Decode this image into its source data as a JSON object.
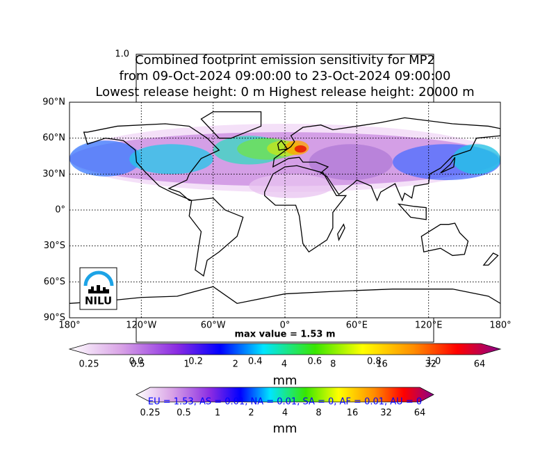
{
  "overlay_corner_tick": "1.0",
  "title": [
    "Combined footprint emission sensitivity for MP2",
    "from 09-Oct-2024 09:00:00 to 23-Oct-2024 09:00:00",
    "Lowest release height: 0 m       Highest release height: 20000 m"
  ],
  "map": {
    "lat_labels": [
      "90°N",
      "60°N",
      "30°N",
      "0°",
      "30°S",
      "60°S",
      "90°S"
    ],
    "lon_labels": [
      "180°",
      "120°W",
      "60°W",
      "0°",
      "60°E",
      "120°E",
      "180°"
    ],
    "logo": "NILU",
    "max_value": "max value = 1.53 m"
  },
  "colorbar_main": {
    "ticks": [
      "0.25",
      "0.5",
      "1",
      "2",
      "4",
      "8",
      "16",
      "32",
      "64"
    ],
    "unit": "mm"
  },
  "overlay_ticks": [
    "0.0",
    "0.2",
    "0.4",
    "0.6",
    "0.8",
    "1.0"
  ],
  "colorbar_second": {
    "ticks": [
      "0.25",
      "0.5",
      "1",
      "2",
      "4",
      "8",
      "16",
      "32",
      "64"
    ],
    "unit": "mm"
  },
  "region_summary": "EU = 1.53,  AS = 0.01,  NA = 0.01,  SA = 0,  AF = 0.01,  AU = 0"
}
